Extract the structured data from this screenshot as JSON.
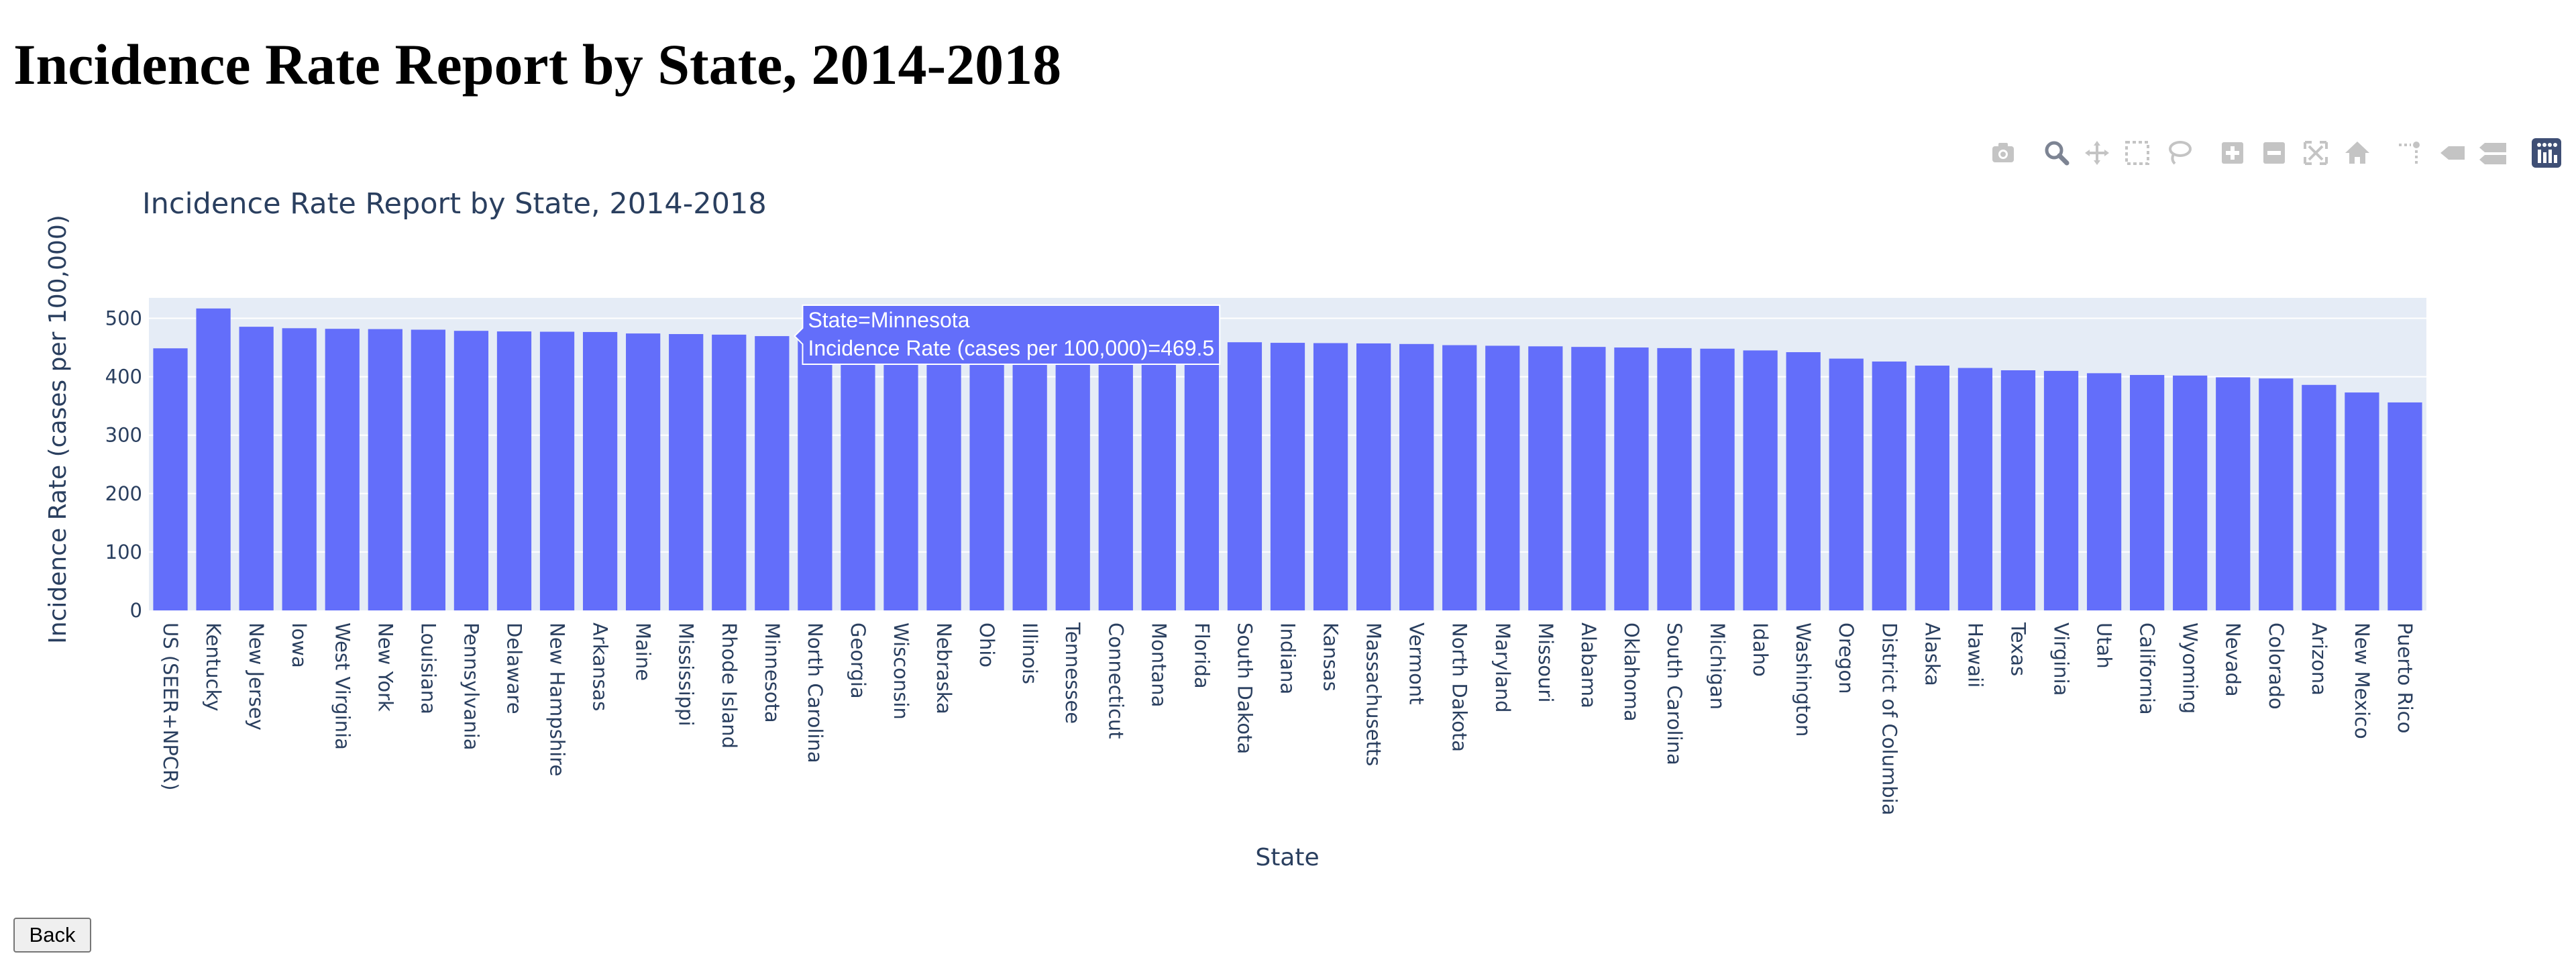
{
  "page": {
    "heading": "Incidence Rate Report by State, 2014-2018",
    "back_label": "Back"
  },
  "modebar": {
    "buttons": [
      {
        "name": "camera-icon",
        "label": "Download plot as a png"
      },
      {
        "name": "zoom-icon",
        "label": "Zoom",
        "active": true
      },
      {
        "name": "pan-icon",
        "label": "Pan"
      },
      {
        "name": "box-select-icon",
        "label": "Box Select"
      },
      {
        "name": "lasso-select-icon",
        "label": "Lasso Select"
      },
      {
        "name": "zoom-in-icon",
        "label": "Zoom in"
      },
      {
        "name": "zoom-out-icon",
        "label": "Zoom out"
      },
      {
        "name": "autoscale-icon",
        "label": "Autoscale"
      },
      {
        "name": "home-icon",
        "label": "Reset axes"
      },
      {
        "name": "spike-lines-icon",
        "label": "Toggle Spike Lines"
      },
      {
        "name": "hover-closest-icon",
        "label": "Show closest data on hover"
      },
      {
        "name": "hover-compare-icon",
        "label": "Compare data on hover"
      },
      {
        "name": "plotly-logo-icon",
        "label": "Produced with Plotly"
      }
    ]
  },
  "colors": {
    "bar": "#636efa",
    "plot_bg": "#e5ecf6",
    "grid": "#ffffff",
    "text": "#2a3f5f",
    "modebar_icon": "#c4c4c4",
    "modebar_active": "#7d8493",
    "logo_bg": "#3f4f75"
  },
  "chart_data": {
    "type": "bar",
    "title": "Incidence Rate Report by State, 2014-2018",
    "xlabel": "State",
    "ylabel": "Incidence Rate (cases per 100,000)",
    "ylim": [
      0,
      535
    ],
    "yticks": [
      0,
      100,
      200,
      300,
      400,
      500
    ],
    "grid": true,
    "legend": "none",
    "categories": [
      "US (SEER+NPCR)",
      "Kentucky",
      "New Jersey",
      "Iowa",
      "West Virginia",
      "New York",
      "Louisiana",
      "Pennsylvania",
      "Delaware",
      "New Hampshire",
      "Arkansas",
      "Maine",
      "Mississippi",
      "Rhode Island",
      "Minnesota",
      "North Carolina",
      "Georgia",
      "Wisconsin",
      "Nebraska",
      "Ohio",
      "Illinois",
      "Tennessee",
      "Connecticut",
      "Montana",
      "Florida",
      "South Dakota",
      "Indiana",
      "Kansas",
      "Massachusetts",
      "Vermont",
      "North Dakota",
      "Maryland",
      "Missouri",
      "Alabama",
      "Oklahoma",
      "South Carolina",
      "Michigan",
      "Idaho",
      "Washington",
      "Oregon",
      "District of Columbia",
      "Alaska",
      "Hawaii",
      "Texas",
      "Virginia",
      "Utah",
      "California",
      "Wyoming",
      "Nevada",
      "Colorado",
      "Arizona",
      "New Mexico",
      "Puerto Rico"
    ],
    "values": [
      448.6,
      516.8,
      485.5,
      483,
      482,
      481.5,
      480.5,
      478.5,
      477.5,
      477,
      476.5,
      474,
      473,
      472,
      469.5,
      466,
      465,
      464,
      463,
      462,
      461.5,
      461,
      460.5,
      460,
      459.5,
      459,
      458,
      457.5,
      457,
      456,
      454,
      453,
      452,
      451,
      450,
      449,
      448,
      445,
      442,
      431,
      426,
      419,
      415,
      411,
      410,
      406,
      403,
      402,
      399,
      397,
      386,
      373,
      356
    ],
    "hover": {
      "state_text": "State=Minnesota",
      "rate_text": "Incidence Rate (cases per 100,000)=469.5"
    }
  }
}
